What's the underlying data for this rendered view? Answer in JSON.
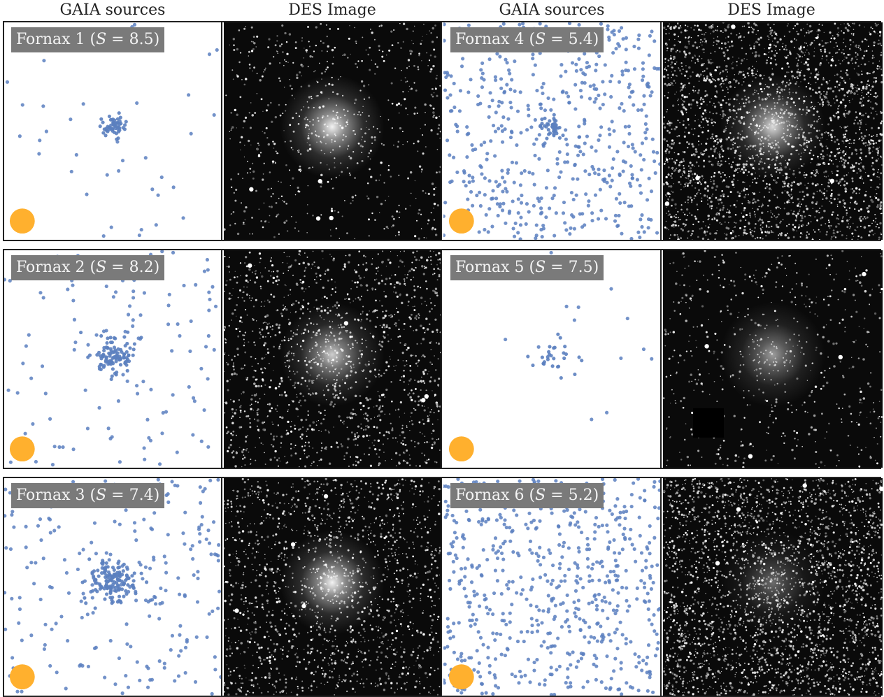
{
  "column_titles": [
    "GAIA sources",
    "DES Image",
    "GAIA sources",
    "DES Image"
  ],
  "colors": {
    "gaia_point": "#5b7fbf",
    "beam_circle": "#ffb02e",
    "label_box": "#7a7a7a",
    "des_background": "#0a0a0a"
  },
  "beam_marker": "orange circle (beam size)",
  "panels": [
    {
      "name": "Fornax 1",
      "S": "8.5",
      "col": 0,
      "row": 0,
      "gaia_field": 40,
      "gaia_cluster": 55,
      "cluster_radius": 0.03,
      "star_density": 0.6,
      "glow": 0.95
    },
    {
      "name": "Fornax 2",
      "S": "8.2",
      "col": 0,
      "row": 1,
      "gaia_field": 120,
      "gaia_cluster": 110,
      "cluster_radius": 0.045,
      "star_density": 1.3,
      "glow": 0.8
    },
    {
      "name": "Fornax 3",
      "S": "7.4",
      "col": 0,
      "row": 2,
      "gaia_field": 230,
      "gaia_cluster": 140,
      "cluster_radius": 0.05,
      "star_density": 1.4,
      "glow": 0.95
    },
    {
      "name": "Fornax 4",
      "S": "5.4",
      "col": 1,
      "row": 0,
      "gaia_field": 520,
      "gaia_cluster": 40,
      "cluster_radius": 0.03,
      "star_density": 2.4,
      "glow": 0.85
    },
    {
      "name": "Fornax 5",
      "S": "7.5",
      "col": 1,
      "row": 1,
      "gaia_field": 14,
      "gaia_cluster": 28,
      "cluster_radius": 0.05,
      "star_density": 0.5,
      "glow": 0.6
    },
    {
      "name": "Fornax 6",
      "S": "5.2",
      "col": 1,
      "row": 2,
      "gaia_field": 620,
      "gaia_cluster": 0,
      "cluster_radius": 0.04,
      "star_density": 2.4,
      "glow": 0.4
    }
  ]
}
